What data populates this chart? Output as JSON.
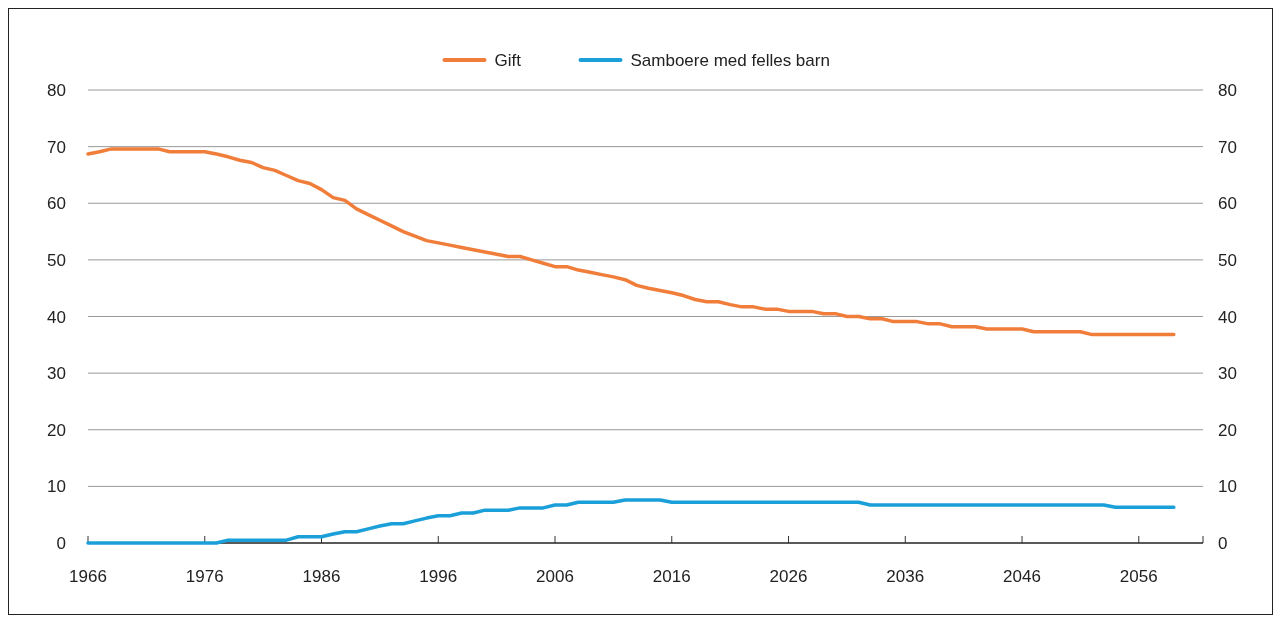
{
  "chart_data": {
    "type": "line",
    "x": [
      1966,
      1967,
      1968,
      1969,
      1970,
      1971,
      1972,
      1973,
      1974,
      1975,
      1976,
      1977,
      1978,
      1979,
      1980,
      1981,
      1982,
      1983,
      1984,
      1985,
      1986,
      1987,
      1988,
      1989,
      1990,
      1991,
      1992,
      1993,
      1994,
      1995,
      1996,
      1997,
      1998,
      1999,
      2000,
      2001,
      2002,
      2003,
      2004,
      2005,
      2006,
      2007,
      2008,
      2009,
      2010,
      2011,
      2012,
      2013,
      2014,
      2015,
      2016,
      2017,
      2018,
      2019,
      2020,
      2021,
      2022,
      2023,
      2024,
      2025,
      2026,
      2027,
      2028,
      2029,
      2030,
      2031,
      2032,
      2033,
      2034,
      2035,
      2036,
      2037,
      2038,
      2039,
      2040,
      2041,
      2042,
      2043,
      2044,
      2045,
      2046,
      2047,
      2048,
      2049,
      2050,
      2051,
      2052,
      2053,
      2054,
      2055,
      2056,
      2057,
      2058,
      2059
    ],
    "series": [
      {
        "name": "Gift",
        "color": "#f07d3a",
        "values": [
          68.7,
          69.1,
          69.6,
          69.6,
          69.6,
          69.6,
          69.6,
          69.1,
          69.1,
          69.1,
          69.1,
          68.7,
          68.2,
          67.6,
          67.2,
          66.3,
          65.8,
          64.9,
          64.0,
          63.5,
          62.4,
          61.0,
          60.5,
          59.0,
          58.0,
          57.0,
          56.0,
          55.0,
          54.2,
          53.4,
          53.0,
          52.6,
          52.2,
          51.8,
          51.4,
          51.0,
          50.6,
          50.6,
          50.0,
          49.4,
          48.8,
          48.8,
          48.2,
          47.8,
          47.4,
          47.0,
          46.5,
          45.5,
          45.0,
          44.6,
          44.2,
          43.7,
          43.0,
          42.6,
          42.6,
          42.1,
          41.7,
          41.7,
          41.3,
          41.3,
          40.9,
          40.9,
          40.9,
          40.5,
          40.5,
          40.0,
          40.0,
          39.6,
          39.6,
          39.1,
          39.1,
          39.1,
          38.7,
          38.7,
          38.2,
          38.2,
          38.2,
          37.8,
          37.8,
          37.8,
          37.8,
          37.3,
          37.3,
          37.3,
          37.3,
          37.3,
          36.8,
          36.8,
          36.8,
          36.8,
          36.8,
          36.8,
          36.8,
          36.8
        ]
      },
      {
        "name": "Samboere med felles barn",
        "color": "#1a9fd9",
        "values": [
          0,
          0,
          0,
          0,
          0,
          0,
          0,
          0,
          0,
          0,
          0,
          0,
          0.5,
          0.5,
          0.5,
          0.5,
          0.5,
          0.5,
          1.1,
          1.1,
          1.1,
          1.6,
          2.0,
          2.0,
          2.5,
          3.0,
          3.4,
          3.4,
          3.9,
          4.4,
          4.8,
          4.8,
          5.3,
          5.3,
          5.8,
          5.8,
          5.8,
          6.2,
          6.2,
          6.2,
          6.7,
          6.7,
          7.2,
          7.2,
          7.2,
          7.2,
          7.6,
          7.6,
          7.6,
          7.6,
          7.2,
          7.2,
          7.2,
          7.2,
          7.2,
          7.2,
          7.2,
          7.2,
          7.2,
          7.2,
          7.2,
          7.2,
          7.2,
          7.2,
          7.2,
          7.2,
          7.2,
          6.7,
          6.7,
          6.7,
          6.7,
          6.7,
          6.7,
          6.7,
          6.7,
          6.7,
          6.7,
          6.7,
          6.7,
          6.7,
          6.7,
          6.7,
          6.7,
          6.7,
          6.7,
          6.7,
          6.7,
          6.7,
          6.3,
          6.3,
          6.3,
          6.3,
          6.3,
          6.3
        ]
      }
    ],
    "xlim": [
      1966,
      2061.5
    ],
    "xticks": [
      1966,
      1976,
      1986,
      1996,
      2006,
      2016,
      2026,
      2036,
      2046,
      2056
    ],
    "ylim": [
      0,
      80
    ],
    "yticks": [
      0,
      10,
      20,
      30,
      40,
      50,
      60,
      70,
      80
    ],
    "y2lim": [
      0,
      80
    ],
    "y2ticks": [
      0,
      10,
      20,
      30,
      40,
      50,
      60,
      70,
      80
    ],
    "grid": "y",
    "legend": "top",
    "marker": "none",
    "line_style": "solid"
  }
}
